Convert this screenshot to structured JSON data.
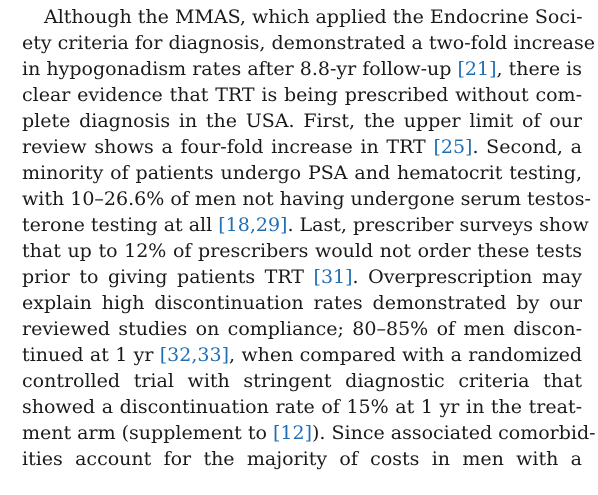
{
  "paragraph": {
    "lines": [
      [
        {
          "t": "Although the MMAS, which applied the Endocrine Soci-"
        }
      ],
      [
        {
          "t": "ety criteria for diagnosis, demonstrated a two-fold increase"
        }
      ],
      [
        {
          "t": "in hypogonadism rates after 8.8-yr follow-up "
        },
        {
          "t": "[21]",
          "ref": true
        },
        {
          "t": ", there is"
        }
      ],
      [
        {
          "t": "clear evidence that TRT is being prescribed without com-"
        }
      ],
      [
        {
          "t": "plete diagnosis in the USA. First, the upper limit of our"
        }
      ],
      [
        {
          "t": "review shows a four-fold increase in TRT "
        },
        {
          "t": "[25]",
          "ref": true
        },
        {
          "t": ". Second, a"
        }
      ],
      [
        {
          "t": "minority of patients undergo PSA and hematocrit testing,"
        }
      ],
      [
        {
          "t": "with 10–26.6% of men not having undergone serum testos-"
        }
      ],
      [
        {
          "t": "terone testing at all "
        },
        {
          "t": "[18,29]",
          "ref": true
        },
        {
          "t": ". Last, prescriber surveys show"
        }
      ],
      [
        {
          "t": "that up to 12% of prescribers would not order these tests"
        }
      ],
      [
        {
          "t": "prior to giving patients TRT "
        },
        {
          "t": "[31]",
          "ref": true
        },
        {
          "t": ". Overprescription may"
        }
      ],
      [
        {
          "t": "explain high discontinuation rates demonstrated by our"
        }
      ],
      [
        {
          "t": "reviewed studies on compliance; 80–85% of men discon-"
        }
      ],
      [
        {
          "t": "tinued at 1 yr "
        },
        {
          "t": "[32,33]",
          "ref": true
        },
        {
          "t": ", when compared with a randomized"
        }
      ],
      [
        {
          "t": "controlled trial with stringent diagnostic criteria that"
        }
      ],
      [
        {
          "t": "showed a discontinuation rate of 15% at 1 yr in the treat-"
        }
      ],
      [
        {
          "t": "ment arm (supplement to "
        },
        {
          "t": "[12]",
          "ref": true
        },
        {
          "t": "). Since associated comorbid-"
        }
      ],
      [
        {
          "t": "ities account for the majority of costs in men with a"
        }
      ]
    ]
  },
  "colors": {
    "text": "#1a1a1a",
    "reference_link": "#1f6fb5"
  }
}
